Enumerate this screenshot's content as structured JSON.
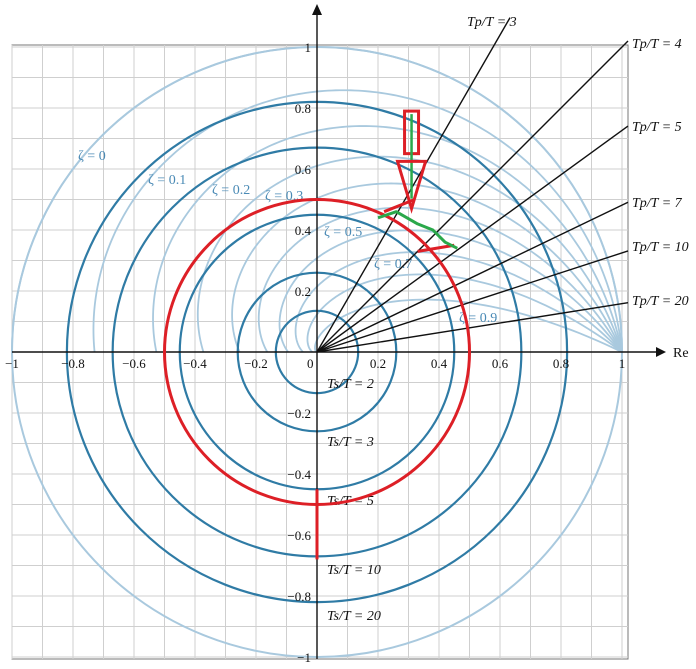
{
  "chart_data": {
    "type": "line",
    "title": "",
    "xlabel": "Re",
    "ylabel": "",
    "xlim": [
      -1,
      1
    ],
    "ylim": [
      -1,
      1
    ],
    "grid": true,
    "x_ticks": [
      "-1",
      "-0.8",
      "-0.6",
      "-0.4",
      "-0.2",
      "0",
      "0.2",
      "0.4",
      "0.6",
      "0.8",
      "1"
    ],
    "y_ticks": [
      "1",
      "0.8",
      "0.6",
      "0.4",
      "0.2",
      "-0.2",
      "-0.4",
      "-0.6",
      "-0.8",
      "-1"
    ],
    "unit_circle_color": "#a9c9de",
    "zeta_color": "#a9c9de",
    "zeta_label_color": "#4a8ab5",
    "ts_circle_color": "#2f7ba5",
    "ray_color": "#111111",
    "annotation_red": "#dd1f26",
    "annotation_green": "#2aa84a",
    "zeta_curves": [
      {
        "zeta": 0.0,
        "label": "ζ = 0"
      },
      {
        "zeta": 0.1,
        "label": "ζ = 0.1"
      },
      {
        "zeta": 0.2,
        "label": "ζ = 0.2"
      },
      {
        "zeta": 0.3,
        "label": "ζ = 0.3"
      },
      {
        "zeta": 0.4,
        "label": ""
      },
      {
        "zeta": 0.5,
        "label": "ζ = 0.5"
      },
      {
        "zeta": 0.6,
        "label": ""
      },
      {
        "zeta": 0.7,
        "label": "ζ = 0.7"
      },
      {
        "zeta": 0.8,
        "label": ""
      },
      {
        "zeta": 0.9,
        "label": "ζ = 0.9"
      }
    ],
    "tp_rays": [
      {
        "ratio": 3,
        "label": "Tp/T = 3"
      },
      {
        "ratio": 4,
        "label": "Tp/T = 4"
      },
      {
        "ratio": 5,
        "label": "Tp/T = 5"
      },
      {
        "ratio": 7,
        "label": "Tp/T = 7"
      },
      {
        "ratio": 10,
        "label": "Tp/T = 10"
      },
      {
        "ratio": 20,
        "label": "Tp/T = 20"
      }
    ],
    "ts_circles": [
      {
        "ratio": 2,
        "radius": 0.135,
        "label": "Ts/T = 2"
      },
      {
        "ratio": 3,
        "radius": 0.26,
        "label": "Ts/T = 3"
      },
      {
        "ratio": 5,
        "radius": 0.45,
        "label": "Ts/T = 5"
      },
      {
        "ratio": 10,
        "radius": 0.67,
        "label": "Ts/T = 10"
      },
      {
        "ratio": 20,
        "radius": 0.82,
        "label": "Ts/T = 20"
      }
    ],
    "annotations": {
      "red_circle": {
        "cx": 0.0,
        "cy": 0.0,
        "r": 0.5
      },
      "red_vertical_line": {
        "x": 0.0,
        "y_from": -0.45,
        "y_to": -0.68
      },
      "red_arrow": {
        "x": 0.31,
        "y_from": 0.78,
        "y_to": 0.47
      },
      "red_ticks": [
        {
          "x1": 0.22,
          "y1": 0.46,
          "x2": 0.32,
          "y2": 0.5
        },
        {
          "x1": 0.33,
          "y1": 0.33,
          "x2": 0.45,
          "y2": 0.35
        }
      ],
      "green_curve": [
        {
          "x": 0.2,
          "y": 0.44
        },
        {
          "x": 0.26,
          "y": 0.46
        },
        {
          "x": 0.33,
          "y": 0.42
        },
        {
          "x": 0.38,
          "y": 0.4
        },
        {
          "x": 0.42,
          "y": 0.36
        },
        {
          "x": 0.46,
          "y": 0.34
        }
      ]
    }
  }
}
